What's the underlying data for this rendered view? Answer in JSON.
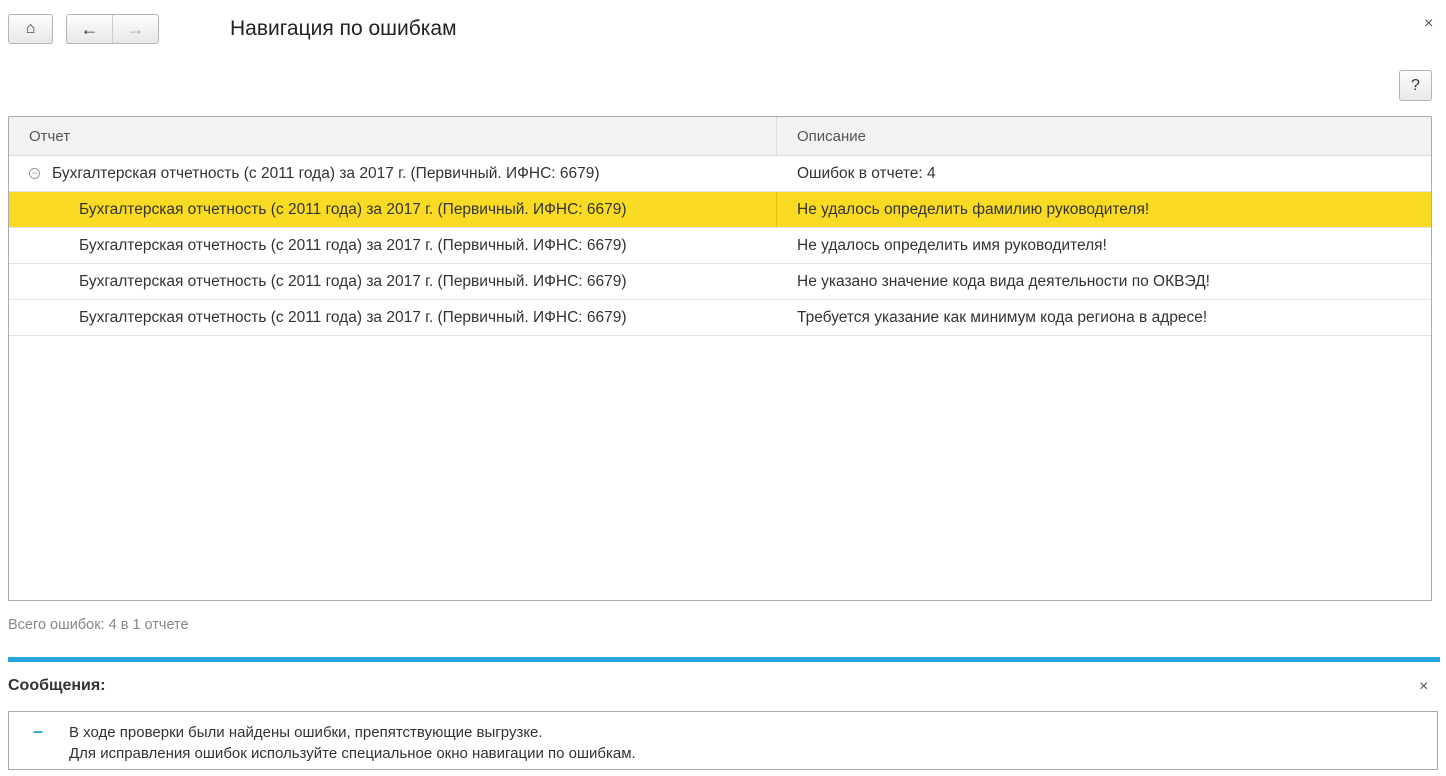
{
  "header": {
    "title": "Навигация по ошибкам",
    "home_icon": "home-icon",
    "back_icon": "arrow-left-icon",
    "forward_icon": "arrow-right-icon",
    "close": "×",
    "help": "?"
  },
  "grid": {
    "columns": [
      "Отчет",
      "Описание"
    ],
    "group": {
      "report": "Бухгалтерская отчетность (с 2011 года) за 2017 г. (Первичный. ИФНС: 6679)",
      "description": "Ошибок в отчете: 4",
      "toggle": "−"
    },
    "rows": [
      {
        "report": "Бухгалтерская отчетность (с 2011 года) за 2017 г. (Первичный. ИФНС: 6679)",
        "description": "Не удалось определить фамилию руководителя!",
        "selected": true
      },
      {
        "report": "Бухгалтерская отчетность (с 2011 года) за 2017 г. (Первичный. ИФНС: 6679)",
        "description": "Не удалось определить имя руководителя!"
      },
      {
        "report": "Бухгалтерская отчетность (с 2011 года) за 2017 г. (Первичный. ИФНС: 6679)",
        "description": "Не указано значение кода вида деятельности по ОКВЭД!"
      },
      {
        "report": "Бухгалтерская отчетность (с 2011 года) за 2017 г. (Первичный. ИФНС: 6679)",
        "description": "Требуется указание как минимум кода региона в адресе!"
      }
    ],
    "selected_color": "#fadb23"
  },
  "total": "Всего ошибок: 4 в 1 отчете",
  "messages": {
    "title": "Сообщения:",
    "close": "×",
    "lines": [
      "В ходе проверки были найдены ошибки, препятствующие выгрузке.",
      "Для исправления ошибок используйте специальное окно навигации по ошибкам."
    ],
    "accent": "#26a6dc"
  }
}
